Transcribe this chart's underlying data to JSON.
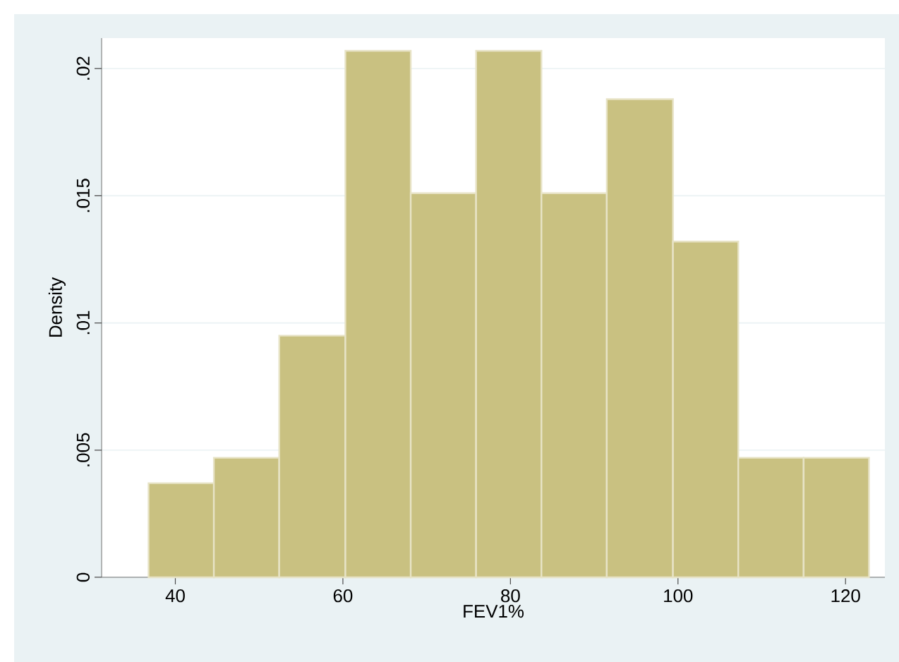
{
  "chart_data": {
    "type": "histogram",
    "xlabel": "FEV1%",
    "ylabel": "Density",
    "bins": [
      36.8,
      44.6,
      52.4,
      60.3,
      68.1,
      75.9,
      83.7,
      91.5,
      99.4,
      107.2,
      115.0,
      122.8
    ],
    "values": [
      0.0037,
      0.0047,
      0.0095,
      0.0207,
      0.0151,
      0.0207,
      0.0151,
      0.0188,
      0.0132,
      0.0047,
      0.0047
    ],
    "color": "#c9c181",
    "xlim": [
      31.2,
      124.7
    ],
    "xticks": [
      40,
      60,
      80,
      100,
      120
    ],
    "ylim": [
      0,
      0.0212
    ],
    "yticks": [
      {
        "value": 0,
        "label": "0"
      },
      {
        "value": 0.005,
        "label": ".005"
      },
      {
        "value": 0.01,
        "label": ".01"
      },
      {
        "value": 0.015,
        "label": ".015"
      },
      {
        "value": 0.02,
        "label": ".02"
      }
    ],
    "grid": "y"
  }
}
